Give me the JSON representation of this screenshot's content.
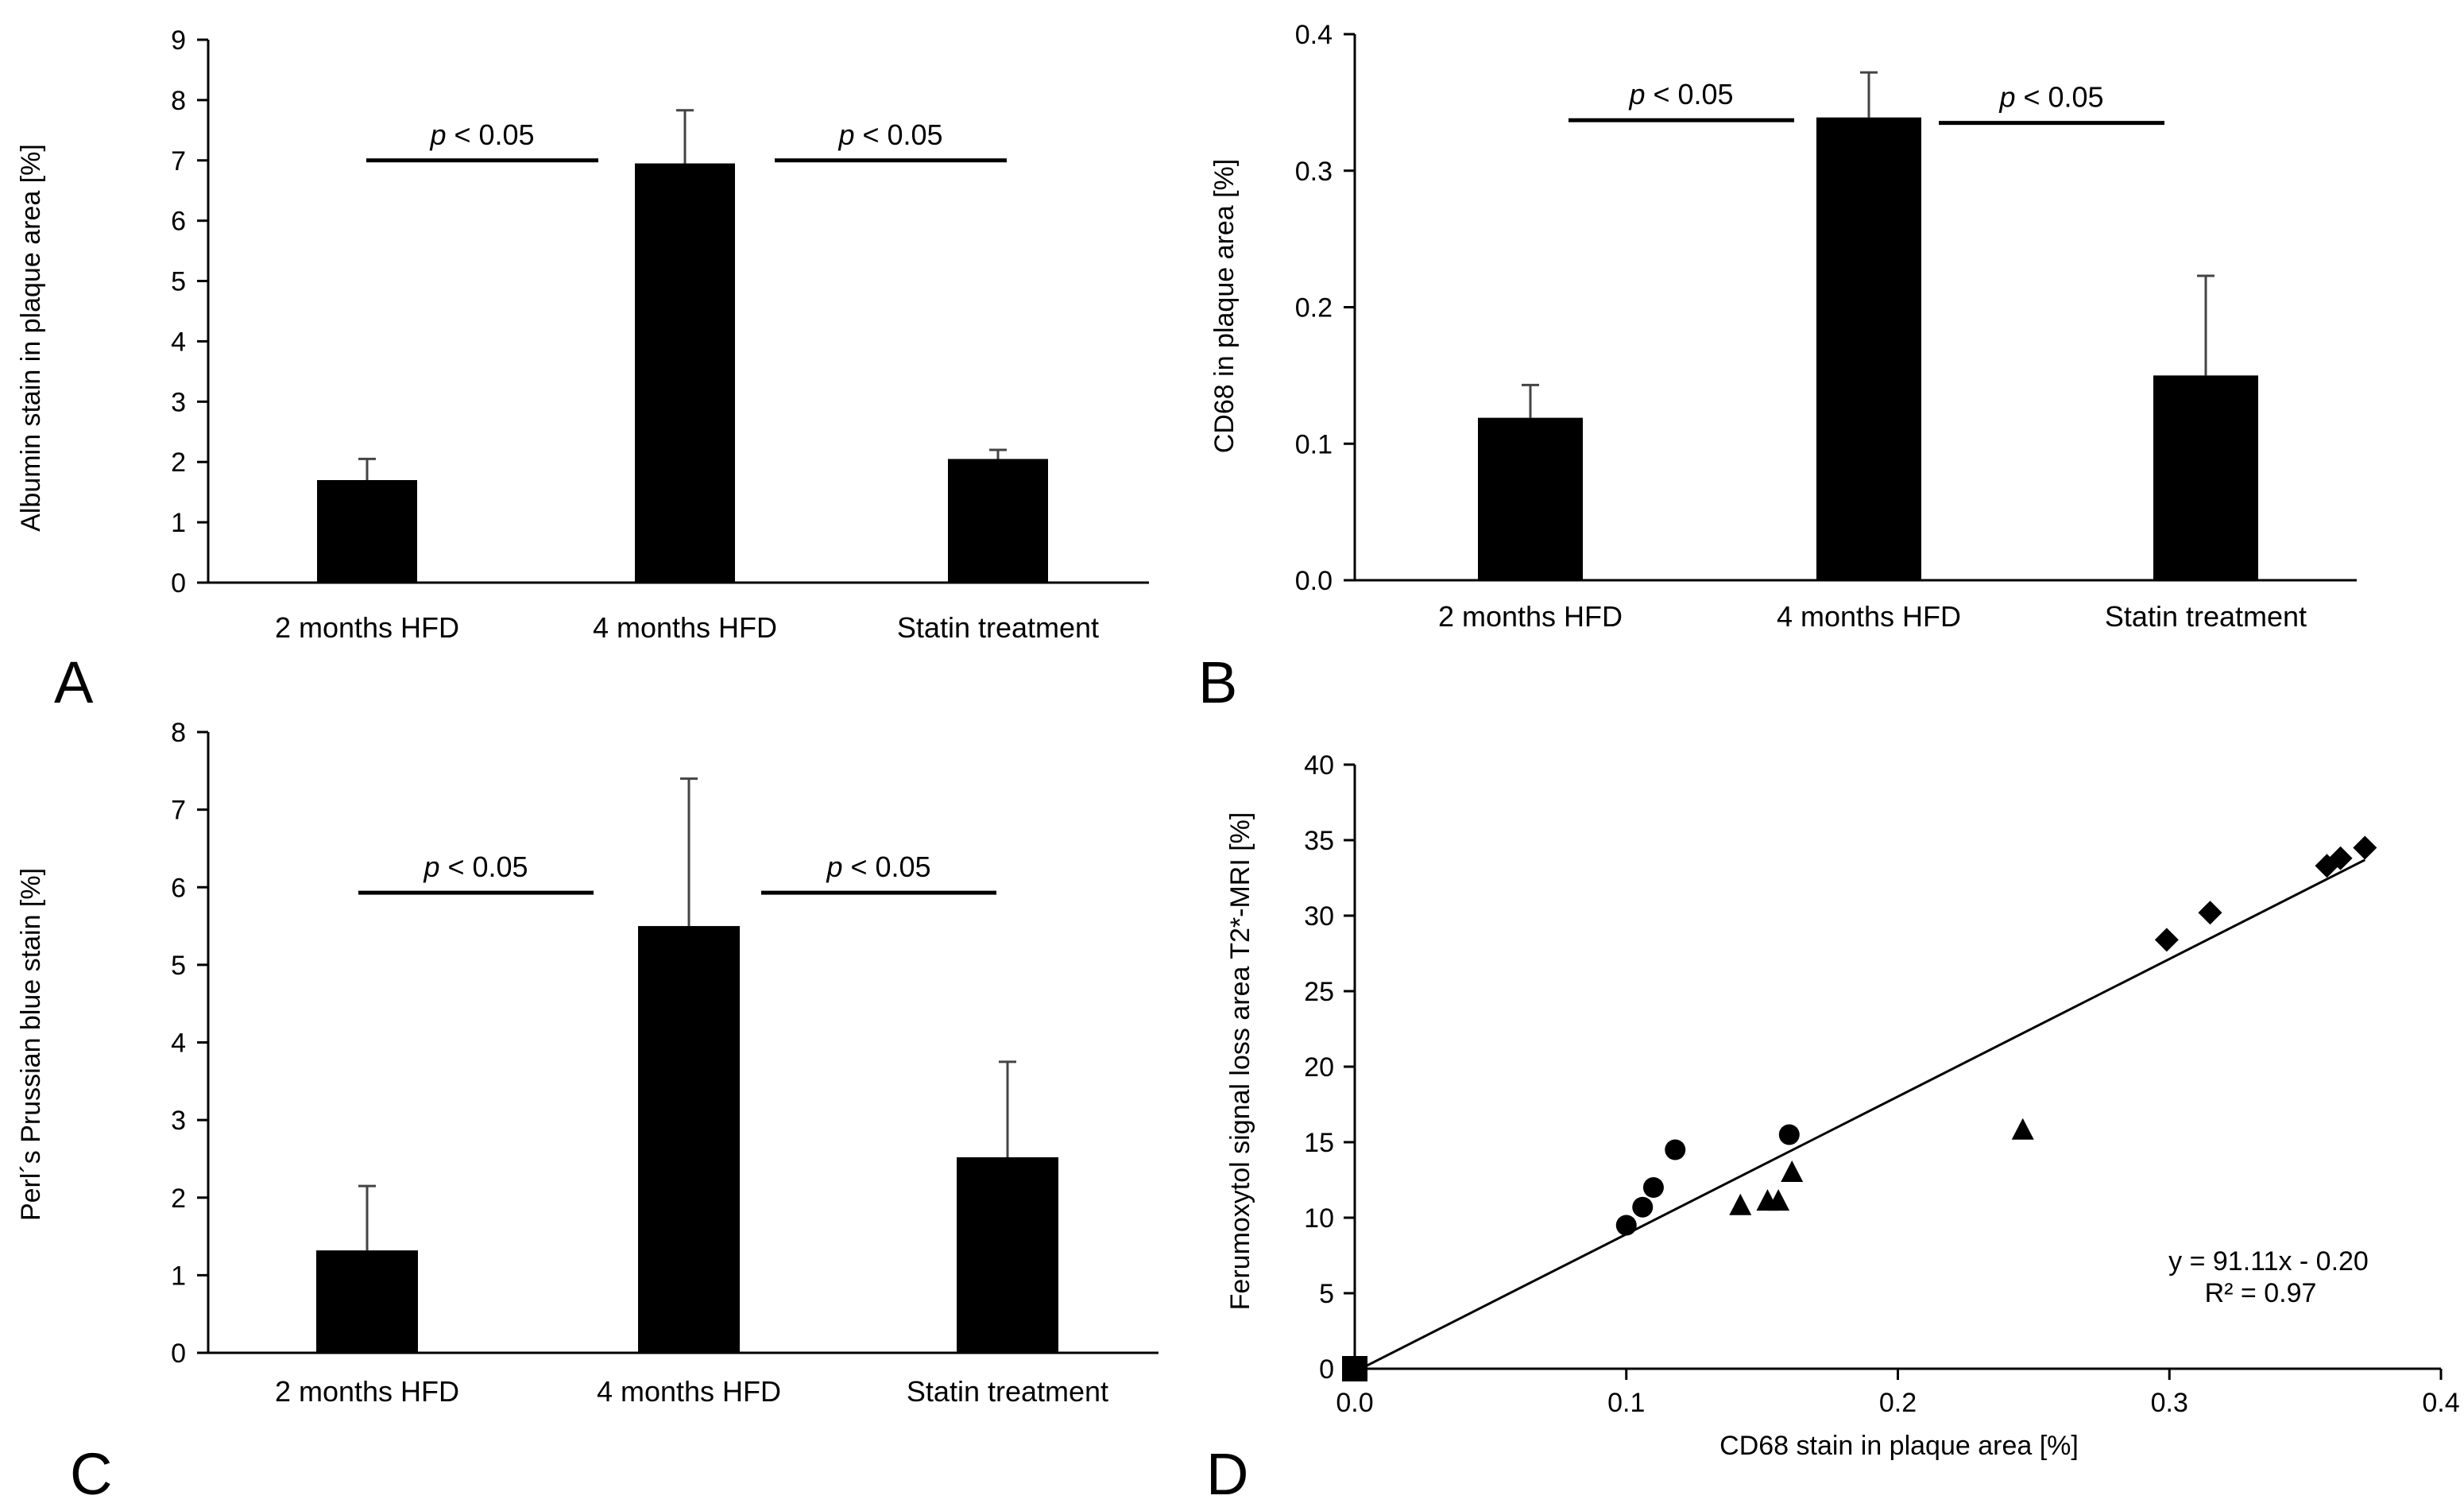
{
  "chart_data": [
    {
      "panel": "A",
      "type": "bar",
      "ylabel": "Albumin stain in plaque area [%]",
      "categories": [
        "2 months HFD",
        "4 months HFD",
        "Statin treatment"
      ],
      "values": [
        1.7,
        6.95,
        2.05
      ],
      "errors": [
        0.35,
        0.88,
        0.15
      ],
      "ylim": [
        0,
        9
      ],
      "yticks": [
        "0",
        "1",
        "2",
        "3",
        "4",
        "5",
        "6",
        "7",
        "8",
        "9"
      ],
      "annotations": [
        {
          "p": "p",
          "rest": " < 0.05",
          "pair": [
            0,
            1
          ],
          "level": 7.0
        },
        {
          "p": "p",
          "rest": " < 0.05",
          "pair": [
            1,
            2
          ],
          "level": 7.0
        }
      ]
    },
    {
      "panel": "B",
      "type": "bar",
      "ylabel": "CD68 in plaque area [%]",
      "categories": [
        "2 months HFD",
        "4 months HFD",
        "Statin treatment"
      ],
      "values": [
        0.119,
        0.339,
        0.15
      ],
      "errors": [
        0.024,
        0.033,
        0.073
      ],
      "ylim": [
        0,
        0.4
      ],
      "yticks": [
        "0.0",
        "0.1",
        "0.2",
        "0.3",
        "0.4"
      ],
      "annotations": [
        {
          "p": "p",
          "rest": " < 0.05",
          "pair": [
            0,
            1
          ],
          "level": 0.337
        },
        {
          "p": "p",
          "rest": " < 0.05",
          "pair": [
            1,
            2
          ],
          "level": 0.335
        }
      ]
    },
    {
      "panel": "C",
      "type": "bar",
      "ylabel": "Perl´s  Prussian blue stain [%]",
      "categories": [
        "2 months HFD",
        "4 months HFD",
        "Statin treatment"
      ],
      "values": [
        1.32,
        5.5,
        2.52
      ],
      "errors": [
        0.83,
        1.9,
        1.23
      ],
      "ylim": [
        0,
        8
      ],
      "yticks": [
        "0",
        "1",
        "2",
        "3",
        "4",
        "5",
        "6",
        "7",
        "8"
      ],
      "annotations": [
        {
          "p": "p",
          "rest": " < 0.05",
          "pair": [
            0,
            1
          ],
          "level": 5.93
        },
        {
          "p": "p",
          "rest": " < 0.05",
          "pair": [
            1,
            2
          ],
          "level": 5.93
        }
      ]
    },
    {
      "panel": "D",
      "type": "scatter",
      "xlabel": "CD68 stain in plaque area  [%]",
      "ylabel": "Ferumoxytol signal loss area T2*-MRI [%]",
      "xlim": [
        0,
        0.4
      ],
      "ylim": [
        0,
        40
      ],
      "xticks": [
        "0.0",
        "0.1",
        "0.2",
        "0.3",
        "0.4"
      ],
      "yticks": [
        "0",
        "5",
        "10",
        "15",
        "20",
        "25",
        "30",
        "35",
        "40"
      ],
      "series": [
        {
          "name": "square",
          "marker": "square",
          "points": [
            [
              0.0,
              0.0
            ]
          ]
        },
        {
          "name": "circle",
          "marker": "circle",
          "points": [
            [
              0.1,
              9.5
            ],
            [
              0.106,
              10.7
            ],
            [
              0.11,
              12.0
            ],
            [
              0.118,
              14.5
            ],
            [
              0.16,
              15.5
            ]
          ]
        },
        {
          "name": "triangle",
          "marker": "triangle",
          "points": [
            [
              0.142,
              10.8
            ],
            [
              0.152,
              11.1
            ],
            [
              0.156,
              11.1
            ],
            [
              0.161,
              13.0
            ],
            [
              0.246,
              15.8
            ]
          ]
        },
        {
          "name": "diamond",
          "marker": "diamond",
          "points": [
            [
              0.299,
              28.4
            ],
            [
              0.315,
              30.2
            ],
            [
              0.358,
              33.3
            ],
            [
              0.363,
              33.8
            ],
            [
              0.372,
              34.5
            ]
          ]
        }
      ],
      "fit": {
        "slope": 91.11,
        "intercept": -0.2,
        "x_range": [
          0,
          0.372
        ]
      },
      "equation": "y = 91.11x - 0.20",
      "r2": "R² = 0.97"
    }
  ]
}
